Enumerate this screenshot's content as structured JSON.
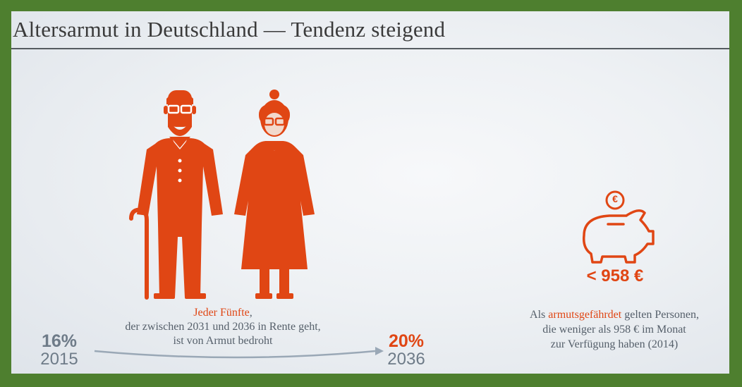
{
  "title": "Altersarmut in Deutschland — Tendenz steigend",
  "caption": {
    "highlight": "Jeder Fünfte",
    "comma": ",",
    "line2": "der zwischen 2031 und 2036 in Rente geht,",
    "line3": "ist von Armut bedroht"
  },
  "stat_start": {
    "percent": "16%",
    "year": "2015"
  },
  "stat_end": {
    "percent": "20%",
    "year": "2036"
  },
  "piggy": {
    "coin_symbol": "€",
    "amount": "< 958 €"
  },
  "right_caption": {
    "prefix": "Als ",
    "highlight": "armutsgefährdet",
    "suffix": " gelten Personen,",
    "line2": "die weniger als 958 € im Monat",
    "line3": "zur Verfügung haben (2014)"
  },
  "colors": {
    "accent": "#e04614",
    "frame": "#4e7f2f",
    "text_gray": "#6e7b88"
  },
  "icons": [
    "elderly-man-icon",
    "elderly-woman-icon",
    "walking-cane-icon",
    "piggy-bank-icon",
    "euro-coin-icon",
    "trend-arrow-icon"
  ]
}
